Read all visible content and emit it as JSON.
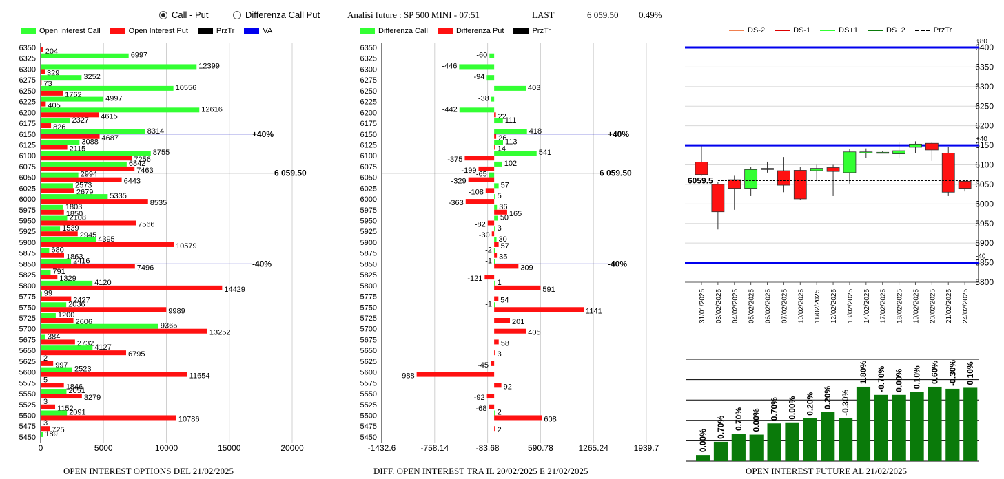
{
  "header": {
    "radio_call_put": "Call - Put",
    "radio_diff": "Differenza Call Put",
    "analysis_title": "Analisi future : SP 500 MINI - 07:51",
    "last_label": "LAST",
    "last_value": "6 059.50",
    "last_change": "0.49%"
  },
  "colors": {
    "green": "#33ff33",
    "red": "#ff1111",
    "black": "#000000",
    "blue": "#0000ee",
    "darkgreen": "#0a7a0a"
  },
  "legend1": {
    "call": "Open Interest Call",
    "put": "Open Interest Put",
    "prztr": "PrzTr",
    "va": "VA"
  },
  "legend2": {
    "call": "Differenza Call",
    "put": "Differenza Put",
    "prztr": "PrzTr"
  },
  "legend3": {
    "ds_m2": "DS-2",
    "ds_m1": "DS-1",
    "ds_p1": "DS+1",
    "ds_p2": "DS+2",
    "prztr": "PrzTr"
  },
  "captions": {
    "chart1": "OPEN INTEREST OPTIONS DEL 21/02/2025",
    "chart2": "DIFF. OPEN INTEREST TRA IL 20/02/2025 E 21/02/2025",
    "chart3": "OPEN INTEREST FUTURE AL 21/02/2025"
  },
  "chart_data": [
    {
      "type": "bar",
      "orientation": "horizontal",
      "categories": [
        6350,
        6325,
        6300,
        6275,
        6250,
        6225,
        6200,
        6175,
        6150,
        6125,
        6100,
        6075,
        6050,
        6025,
        6000,
        5975,
        5950,
        5925,
        5900,
        5875,
        5850,
        5825,
        5800,
        5775,
        5750,
        5725,
        5700,
        5675,
        5650,
        5625,
        5600,
        5575,
        5550,
        5525,
        5500,
        5475,
        5450
      ],
      "series": [
        {
          "name": "Open Interest Call",
          "values": [
            null,
            6997,
            12399,
            3252,
            10556,
            4997,
            12616,
            2327,
            8314,
            3088,
            8755,
            6842,
            2994,
            2573,
            5335,
            1803,
            2108,
            1539,
            4395,
            680,
            2416,
            791,
            4120,
            99,
            2036,
            1200,
            9365,
            384,
            4127,
            2,
            2523,
            5,
            2051,
            3,
            2091,
            3,
            189
          ]
        },
        {
          "name": "Open Interest Put",
          "values": [
            204,
            null,
            329,
            73,
            1762,
            405,
            4615,
            826,
            4687,
            2115,
            7256,
            7463,
            6443,
            2679,
            8535,
            1850,
            7566,
            2945,
            10579,
            1863,
            7496,
            1329,
            14429,
            2427,
            9989,
            2606,
            13252,
            2732,
            6795,
            997,
            11654,
            1846,
            3279,
            1152,
            10786,
            725,
            null
          ]
        }
      ],
      "xticks": [
        0,
        5000,
        10000,
        15000,
        20000
      ],
      "xlim": [
        0,
        20500
      ],
      "annotations": [
        {
          "label": "+40%",
          "y": 6150
        },
        {
          "label": "-40%",
          "y": 5850
        },
        {
          "label": "6 059.50",
          "y": 6059.5
        }
      ]
    },
    {
      "type": "bar",
      "orientation": "horizontal",
      "categories": [
        6350,
        6325,
        6300,
        6275,
        6250,
        6225,
        6200,
        6175,
        6150,
        6125,
        6100,
        6075,
        6050,
        6025,
        6000,
        5975,
        5950,
        5925,
        5900,
        5875,
        5850,
        5825,
        5800,
        5775,
        5750,
        5725,
        5700,
        5675,
        5650,
        5625,
        5600,
        5575,
        5550,
        5525,
        5500,
        5475,
        5450
      ],
      "series": [
        {
          "name": "Differenza Call",
          "values": [
            null,
            -60,
            -446,
            -94,
            403,
            -38,
            -442,
            111,
            418,
            113,
            541,
            102,
            -65,
            57,
            5,
            36,
            50,
            3,
            30,
            -2,
            -1,
            null,
            1,
            null,
            -1,
            null,
            null,
            null,
            null,
            null,
            null,
            null,
            null,
            null,
            2,
            null,
            null
          ]
        },
        {
          "name": "Differenza Put",
          "values": [
            null,
            null,
            null,
            null,
            null,
            null,
            22,
            null,
            26,
            14,
            -375,
            -199,
            -329,
            -108,
            -363,
            165,
            -82,
            -30,
            57,
            35,
            309,
            -121,
            591,
            54,
            1141,
            201,
            405,
            58,
            3,
            -45,
            -988,
            92,
            -92,
            -68,
            608,
            2,
            null
          ]
        }
      ],
      "xticks": [
        "-1432.6",
        "-758.14",
        "-83.68",
        "590.78",
        "1265.24",
        "1939.7"
      ],
      "xlim": [
        -1432.6,
        1939.7
      ],
      "annotations": [
        {
          "label": "+40%",
          "y": 6150
        },
        {
          "label": "-40%",
          "y": 5850
        },
        {
          "label": "6 059.50",
          "y": 6059.5
        }
      ]
    },
    {
      "type": "candlestick",
      "x": [
        "31/01/2025",
        "03/02/2025",
        "04/02/2025",
        "05/02/2025",
        "06/02/2025",
        "07/02/2025",
        "10/02/2025",
        "11/02/2025",
        "12/02/2025",
        "13/02/2025",
        "14/02/2025",
        "17/02/2025",
        "18/02/2025",
        "19/02/2025",
        "20/02/2025",
        "21/02/2025",
        "24/02/2025"
      ],
      "open": [
        6107,
        6050,
        6062,
        6040,
        6088,
        6085,
        6086,
        6085,
        6093,
        6080,
        6133,
        6132,
        6128,
        6145,
        6155,
        6130,
        6058
      ],
      "high": [
        6148,
        6056,
        6072,
        6095,
        6108,
        6120,
        6095,
        6100,
        6100,
        6140,
        6142,
        6135,
        6158,
        6160,
        6158,
        6145,
        6062
      ],
      "low": [
        6072,
        5935,
        5985,
        6020,
        6080,
        6030,
        6010,
        6060,
        6020,
        6052,
        6118,
        6130,
        6118,
        6130,
        6110,
        6020,
        6032
      ],
      "close": [
        6075,
        5980,
        6040,
        6088,
        6091,
        6048,
        6013,
        6091,
        6083,
        6133,
        6133,
        6132,
        6136,
        6153,
        6138,
        6030,
        6040
      ],
      "ylim": [
        5800,
        6400
      ],
      "yticks": [
        5800,
        5850,
        5900,
        5950,
        6000,
        6050,
        6100,
        6150,
        6200,
        6250,
        6300,
        6350,
        6400
      ],
      "last_price": "6059.5",
      "levels": [
        {
          "label": "+80",
          "y": 6400
        },
        {
          "label": "+40",
          "y": 6150
        },
        {
          "label": "-40",
          "y": 5850
        }
      ]
    },
    {
      "type": "bar",
      "values": [
        0.0,
        0.7,
        0.7,
        0.0,
        0.7,
        0.0,
        0.2,
        0.2,
        -0.3,
        1.8,
        -0.7,
        0.0,
        0.1,
        0.6,
        -0.3,
        0.1
      ],
      "labels": [
        "0.00%",
        "0.70%",
        "0.70%",
        "0.00%",
        "0.70%",
        "0.00%",
        "0.20%",
        "0.20%",
        "-0.30%",
        "1.80%",
        "-0.70%",
        "0.00%",
        "0.10%",
        "0.60%",
        "-0.30%",
        "0.10%"
      ],
      "heights": [
        6,
        19,
        27,
        26,
        37,
        38,
        42,
        48,
        42,
        73,
        65,
        65,
        68,
        73,
        71,
        72
      ],
      "hmax": 100
    }
  ]
}
